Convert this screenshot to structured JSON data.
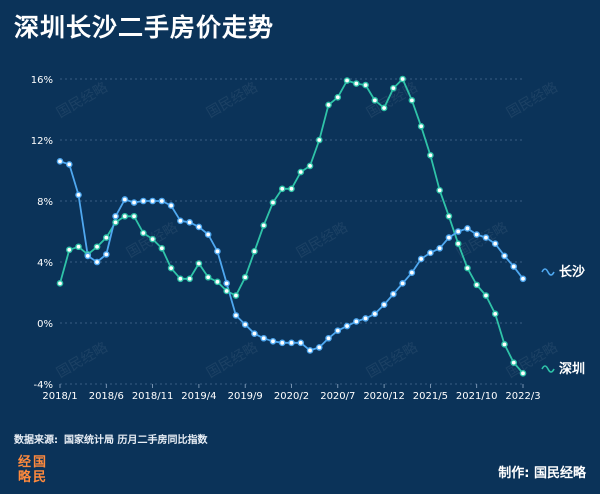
{
  "header": {
    "title": "深圳长沙二手房价走势"
  },
  "footer": {
    "source_label": "数据来源:",
    "source_value": "国家统计局 历月二手房同比指数",
    "credit": "制作: 国民经略"
  },
  "logo": {
    "chars": [
      "国",
      "民",
      "经",
      "略"
    ]
  },
  "watermark_text": "国民经略",
  "colors": {
    "background": "#0b3359",
    "shenzhen": "#2fc3a8",
    "changsha": "#4fa8f0",
    "grid": "#4a6d92"
  },
  "chart_data": {
    "type": "line",
    "title": "深圳长沙二手房价走势",
    "xlabel": "",
    "ylabel": "",
    "ylim": [
      -4,
      16
    ],
    "y_ticks": [
      "16%",
      "12%",
      "8%",
      "4%",
      "0%",
      "-4%"
    ],
    "y_tick_values": [
      16,
      12,
      8,
      4,
      0,
      -4
    ],
    "x_ticks": [
      "2018/1",
      "2018/6",
      "2018/11",
      "2019/4",
      "2019/9",
      "2020/2",
      "2020/7",
      "2020/12",
      "2021/5",
      "2021/10",
      "2022/3"
    ],
    "x_tick_index": [
      0,
      5,
      10,
      15,
      20,
      25,
      30,
      35,
      40,
      45,
      50
    ],
    "num_points": 51,
    "series": [
      {
        "name": "深圳",
        "legend": "深圳",
        "values": [
          2.6,
          4.8,
          5.0,
          4.5,
          5.0,
          5.6,
          6.6,
          7.0,
          7.0,
          5.9,
          5.5,
          4.9,
          3.6,
          2.9,
          2.9,
          3.9,
          3.0,
          2.7,
          2.1,
          1.8,
          3.0,
          4.7,
          6.4,
          7.9,
          8.8,
          8.8,
          9.9,
          10.3,
          12.0,
          14.3,
          14.8,
          15.9,
          15.7,
          15.6,
          14.6,
          14.1,
          15.4,
          16.0,
          14.6,
          12.9,
          11.0,
          8.7,
          7.0,
          5.2,
          3.6,
          2.5,
          1.8,
          0.6,
          -1.4,
          -2.6,
          -3.3
        ]
      },
      {
        "name": "长沙",
        "legend": "长沙",
        "values": [
          10.6,
          10.4,
          8.4,
          4.4,
          4.0,
          4.5,
          7.0,
          8.1,
          7.9,
          8.0,
          8.0,
          8.0,
          7.7,
          6.7,
          6.6,
          6.3,
          5.8,
          4.7,
          2.6,
          0.5,
          -0.1,
          -0.7,
          -1.0,
          -1.2,
          -1.3,
          -1.3,
          -1.3,
          -1.8,
          -1.6,
          -1.0,
          -0.5,
          -0.2,
          0.1,
          0.3,
          0.6,
          1.2,
          1.9,
          2.6,
          3.3,
          4.2,
          4.6,
          4.9,
          5.6,
          6.0,
          6.2,
          5.8,
          5.6,
          5.2,
          4.4,
          3.7,
          2.9
        ]
      }
    ]
  }
}
